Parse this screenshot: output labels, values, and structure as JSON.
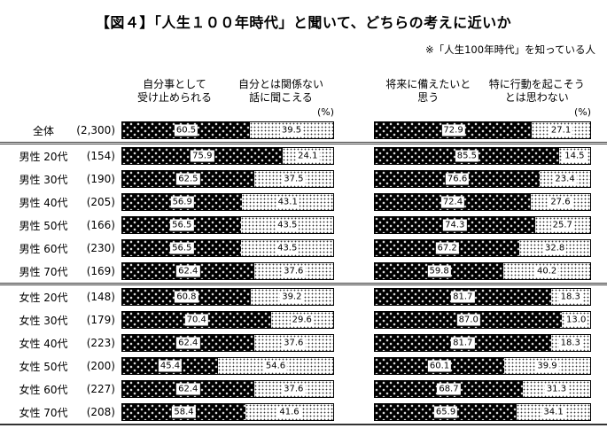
{
  "title": "【図４】「人生１００年時代」と聞いて、どちらの考えに近いか",
  "note": "※「人生100年時代」を知っている人",
  "left_panel": {
    "col1_header": "自分事として\n受け止められる",
    "col2_header": "自分とは関係ない\n話に聞こえる",
    "unit_label": "(%)"
  },
  "right_panel": {
    "col1_header": "将来に備えたいと\n思う",
    "col2_header": "特に行動を起こそう\nとは思わない",
    "unit_label": "(%)"
  },
  "chart_data": {
    "type": "bar",
    "orientation": "horizontal",
    "stacked": true,
    "unit": "%",
    "x_range": [
      0,
      100
    ],
    "categories": [
      "全体",
      "男性 20代",
      "男性 30代",
      "男性 40代",
      "男性 50代",
      "男性 60代",
      "男性 70代",
      "女性 20代",
      "女性 30代",
      "女性 40代",
      "女性 50代",
      "女性 60代",
      "女性 70代"
    ],
    "counts": [
      "(2,300)",
      "(154)",
      "(190)",
      "(205)",
      "(166)",
      "(230)",
      "(169)",
      "(148)",
      "(179)",
      "(223)",
      "(200)",
      "(227)",
      "(208)"
    ],
    "series": [
      {
        "name": "自分事として受け止められる",
        "panel": "left",
        "style": "black-with-white-dots",
        "values": [
          60.5,
          75.9,
          62.5,
          56.9,
          56.5,
          56.5,
          62.4,
          60.8,
          70.4,
          62.4,
          45.4,
          62.4,
          58.4
        ]
      },
      {
        "name": "自分とは関係ない話に聞こえる",
        "panel": "left",
        "style": "white-with-black-dots",
        "values": [
          39.5,
          24.1,
          37.5,
          43.1,
          43.5,
          43.5,
          37.6,
          39.2,
          29.6,
          37.6,
          54.6,
          37.6,
          41.6
        ]
      },
      {
        "name": "将来に備えたいと思う",
        "panel": "right",
        "style": "black-with-white-dots",
        "values": [
          72.9,
          85.5,
          76.6,
          72.4,
          74.3,
          67.2,
          59.8,
          81.7,
          87.0,
          81.7,
          60.1,
          68.7,
          65.9
        ]
      },
      {
        "name": "特に行動を起こそうとは思わない",
        "panel": "right",
        "style": "white-with-black-dots",
        "values": [
          27.1,
          14.5,
          23.4,
          27.6,
          25.7,
          32.8,
          40.2,
          18.3,
          13.0,
          18.3,
          39.9,
          31.3,
          34.1
        ]
      }
    ],
    "group_breaks_after": [
      0,
      6
    ],
    "colors": {
      "dark_segment": "#000000",
      "light_segment": "#ffffff",
      "text": "#000000"
    }
  }
}
